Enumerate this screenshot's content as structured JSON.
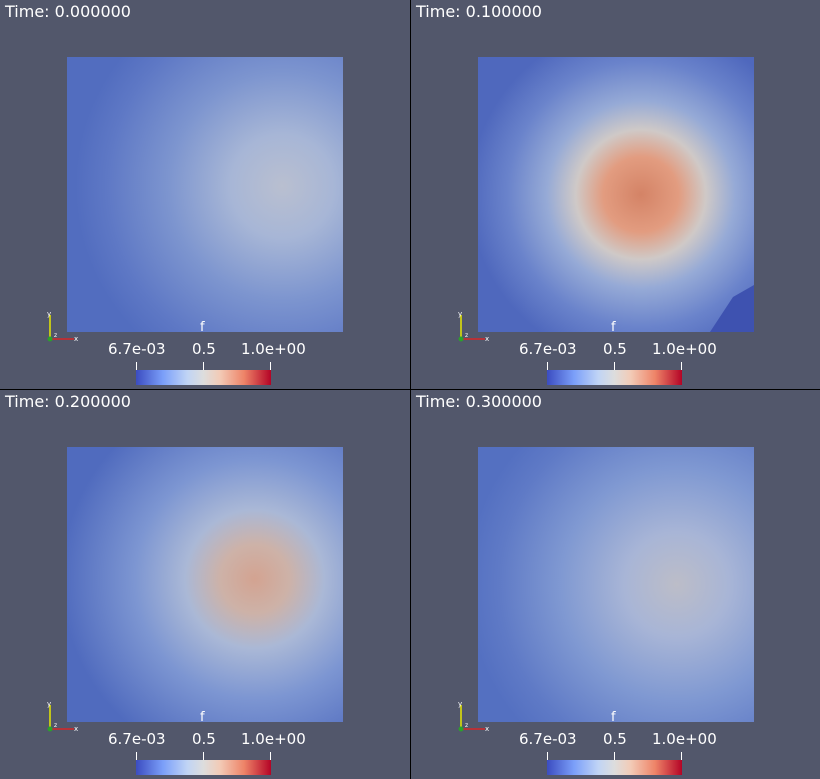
{
  "panels": [
    {
      "time_label": "Time: 0.000000",
      "colorbar": {
        "title": "f",
        "min_label": "6.7e-03",
        "mid_label": "0.5",
        "max_label": "1.0e+00"
      }
    },
    {
      "time_label": "Time: 0.100000",
      "colorbar": {
        "title": "f",
        "min_label": "6.7e-03",
        "mid_label": "0.5",
        "max_label": "1.0e+00"
      }
    },
    {
      "time_label": "Time: 0.200000",
      "colorbar": {
        "title": "f",
        "min_label": "6.7e-03",
        "mid_label": "0.5",
        "max_label": "1.0e+00"
      }
    },
    {
      "time_label": "Time: 0.300000",
      "colorbar": {
        "title": "f",
        "min_label": "6.7e-03",
        "mid_label": "0.5",
        "max_label": "1.0e+00"
      }
    }
  ],
  "axes_labels": {
    "x": "x",
    "y": "y",
    "z": "z"
  },
  "colors": {
    "background": "#52576b",
    "colormap_low": "#3b4cc0",
    "colormap_mid": "#dddddd",
    "colormap_high": "#b40426",
    "axis_x": "#d62728",
    "axis_y": "#e8e800",
    "axis_z": "#2ca02c"
  }
}
